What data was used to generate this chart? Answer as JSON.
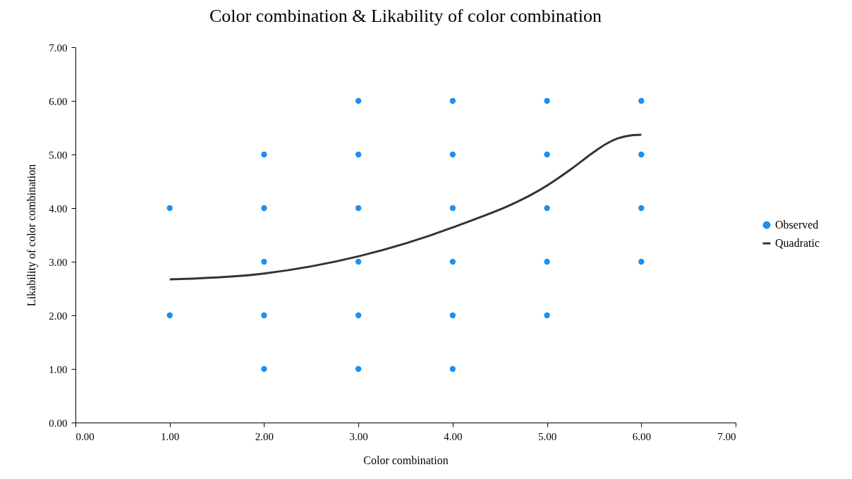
{
  "chart_data": {
    "type": "scatter",
    "title": "Color combination & Likability of color combination",
    "xlabel": "Color combination",
    "ylabel": "Likability of color combination",
    "xlim": [
      0,
      7
    ],
    "ylim": [
      0,
      7
    ],
    "xticks": [
      {
        "value": 0,
        "label": "0.00"
      },
      {
        "value": 1,
        "label": "1.00"
      },
      {
        "value": 2,
        "label": "2.00"
      },
      {
        "value": 3,
        "label": "3.00"
      },
      {
        "value": 4,
        "label": "4.00"
      },
      {
        "value": 5,
        "label": "5.00"
      },
      {
        "value": 6,
        "label": "6.00"
      },
      {
        "value": 7,
        "label": "7.00"
      }
    ],
    "yticks": [
      {
        "value": 0,
        "label": "0.00"
      },
      {
        "value": 1,
        "label": "1.00"
      },
      {
        "value": 2,
        "label": "2.00"
      },
      {
        "value": 3,
        "label": "3.00"
      },
      {
        "value": 4,
        "label": "4.00"
      },
      {
        "value": 5,
        "label": "5.00"
      },
      {
        "value": 6,
        "label": "6.00"
      },
      {
        "value": 7,
        "label": "7.00"
      }
    ],
    "grid": false,
    "legend": "right",
    "marker": "circle",
    "series": [
      {
        "name": "Observed",
        "color": "#1e8ff0",
        "x": [
          1,
          1,
          2,
          2,
          2,
          2,
          2,
          3,
          3,
          3,
          3,
          3,
          3,
          4,
          4,
          4,
          4,
          4,
          4,
          5,
          5,
          5,
          5,
          5,
          6,
          6,
          6,
          6
        ],
        "values": [
          4,
          2,
          5,
          4,
          3,
          2,
          1,
          6,
          5,
          4,
          3,
          2,
          1,
          6,
          5,
          4,
          3,
          2,
          1,
          6,
          5,
          4,
          3,
          2,
          6,
          5,
          4,
          3
        ]
      },
      {
        "name": "Quadratic",
        "type": "line",
        "line_style": "solid",
        "marker": "none",
        "color": "#333333",
        "x": [
          1,
          2,
          3,
          4,
          5,
          5.25,
          5.5,
          5.63,
          5.75,
          5.9,
          6
        ],
        "values": [
          2.67,
          2.78,
          3.1,
          3.64,
          4.42,
          4.72,
          5.05,
          5.2,
          5.3,
          5.36,
          5.37
        ]
      }
    ]
  }
}
